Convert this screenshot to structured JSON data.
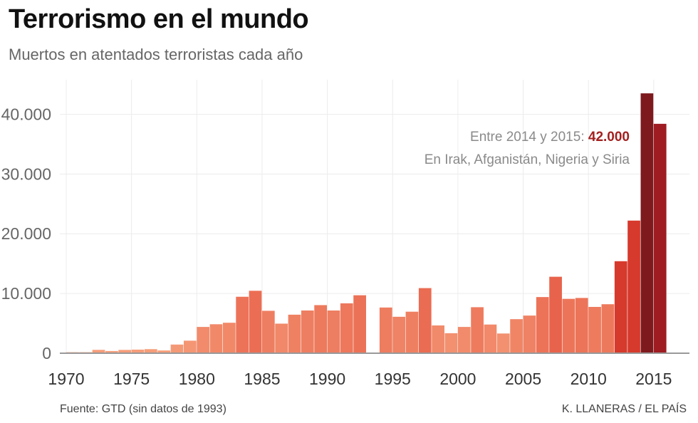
{
  "header": {
    "title": "Terrorismo en el mundo",
    "subtitle": "Muertos en atentados terroristas cada año"
  },
  "annotation": {
    "line1_prefix": "Entre 2014 y 2015: ",
    "line1_value": "42.000",
    "line2": "En Irak, Afganistán, Nigeria y Siria"
  },
  "footer": {
    "source": "Fuente: GTD (sin datos de 1993)",
    "credit": "K. LLANERAS / EL PAÍS"
  },
  "colors": {
    "bar_low": "#f6a07c",
    "bar_mid": "#e8624a",
    "bar_high": "#d63a2c",
    "bar_peak": "#7e1a1e",
    "bar_peak2": "#9e1c22",
    "grid": "#ececec",
    "baseline": "#999999"
  },
  "chart_data": {
    "type": "bar",
    "title": "Terrorismo en el mundo",
    "subtitle": "Muertos en atentados terroristas cada año",
    "xlabel": "",
    "ylabel": "",
    "ylim": [
      0,
      45000
    ],
    "xlim": [
      1970,
      2016
    ],
    "grid": true,
    "x_ticks": [
      1970,
      1975,
      1980,
      1985,
      1990,
      1995,
      2000,
      2005,
      2010,
      2015
    ],
    "x_tick_labels": [
      "1970",
      "1975",
      "1980",
      "1985",
      "1990",
      "1995",
      "2000",
      "2005",
      "2010",
      "2015"
    ],
    "y_ticks": [
      0,
      10000,
      20000,
      30000,
      40000
    ],
    "y_tick_labels": [
      "0",
      "10.000",
      "20.000",
      "30.000",
      "40.000"
    ],
    "years": [
      1970,
      1971,
      1972,
      1973,
      1974,
      1975,
      1976,
      1977,
      1978,
      1979,
      1980,
      1981,
      1982,
      1983,
      1984,
      1985,
      1986,
      1987,
      1988,
      1989,
      1990,
      1991,
      1992,
      1993,
      1994,
      1995,
      1996,
      1997,
      1998,
      1999,
      2000,
      2001,
      2002,
      2003,
      2004,
      2005,
      2006,
      2007,
      2008,
      2009,
      2010,
      2011,
      2012,
      2013,
      2014,
      2015
    ],
    "values": [
      170,
      170,
      560,
      370,
      550,
      600,
      680,
      460,
      1450,
      2100,
      4400,
      4850,
      5100,
      9450,
      10450,
      7100,
      4950,
      6450,
      7150,
      8050,
      7150,
      8350,
      9700,
      null,
      7650,
      6100,
      6950,
      10900,
      4650,
      3350,
      4400,
      7700,
      4800,
      3300,
      5700,
      6300,
      9400,
      12800,
      9100,
      9250,
      7750,
      8200,
      15400,
      22200,
      43500,
      38400
    ]
  }
}
